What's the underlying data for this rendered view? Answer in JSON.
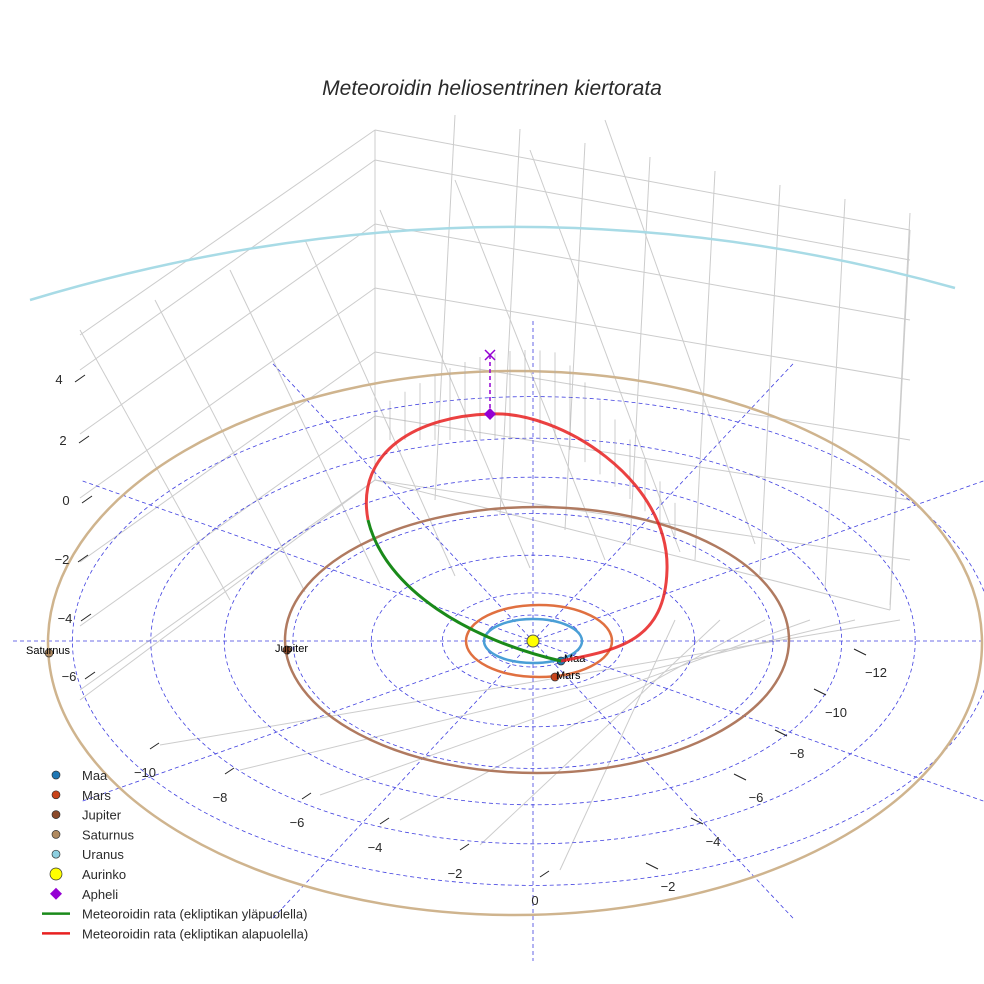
{
  "chart_data": {
    "type": "scatter3d",
    "title": "Meteoroidin heliosentrinen kiertorata",
    "z_ticks": [
      "4",
      "2",
      "0",
      "−2",
      "−4",
      "−6"
    ],
    "x_ticks": [
      "−10",
      "−8",
      "−6",
      "−4",
      "−2",
      "0"
    ],
    "y_ticks": [
      "−12",
      "−10",
      "−8",
      "−6",
      "−4",
      "−2"
    ],
    "planets": [
      {
        "name": "Maa",
        "label": "Maa",
        "color": "#1f77b4",
        "orbit_color": "#4a9fd6",
        "orbit_radius_au": 1.0
      },
      {
        "name": "Mars",
        "label": "Mars",
        "color": "#c8441a",
        "orbit_color": "#e07040",
        "orbit_radius_au": 1.52
      },
      {
        "name": "Jupiter",
        "label": "Jupiter",
        "color": "#8b4a2b",
        "orbit_color": "#b07a60",
        "orbit_radius_au": 5.2
      },
      {
        "name": "Saturnus",
        "label": "Saturnus",
        "color": "#b08a60",
        "orbit_color": "#cfb48e",
        "orbit_radius_au": 9.5
      },
      {
        "name": "Uranus",
        "label": "",
        "color": "#8ecfe0",
        "orbit_color": "#a8dbe6",
        "orbit_radius_au": 19.2
      }
    ],
    "legend": [
      {
        "label": "Maa",
        "marker": "circle",
        "color": "#1f77b4"
      },
      {
        "label": "Mars",
        "marker": "circle",
        "color": "#c8441a"
      },
      {
        "label": "Jupiter",
        "marker": "circle",
        "color": "#8b4a2b"
      },
      {
        "label": "Saturnus",
        "marker": "circle",
        "color": "#b08a60"
      },
      {
        "label": "Uranus",
        "marker": "circle",
        "color": "#8ecfe0"
      },
      {
        "label": "Aurinko",
        "marker": "circle-large",
        "color": "#ffff00"
      },
      {
        "label": "Apheli",
        "marker": "diamond",
        "color": "#9400d3"
      },
      {
        "label": "Meteoroidin rata (ekliptikan yläpuolella)",
        "marker": "line",
        "color": "#1a8a1a"
      },
      {
        "label": "Meteoroidin rata (ekliptikan alapuolella)",
        "marker": "line",
        "color": "#e82020"
      }
    ],
    "legend_position": "bottom-left",
    "colors": {
      "grid": "#cccccc",
      "ecliptic_grid": "#4040e0"
    }
  }
}
